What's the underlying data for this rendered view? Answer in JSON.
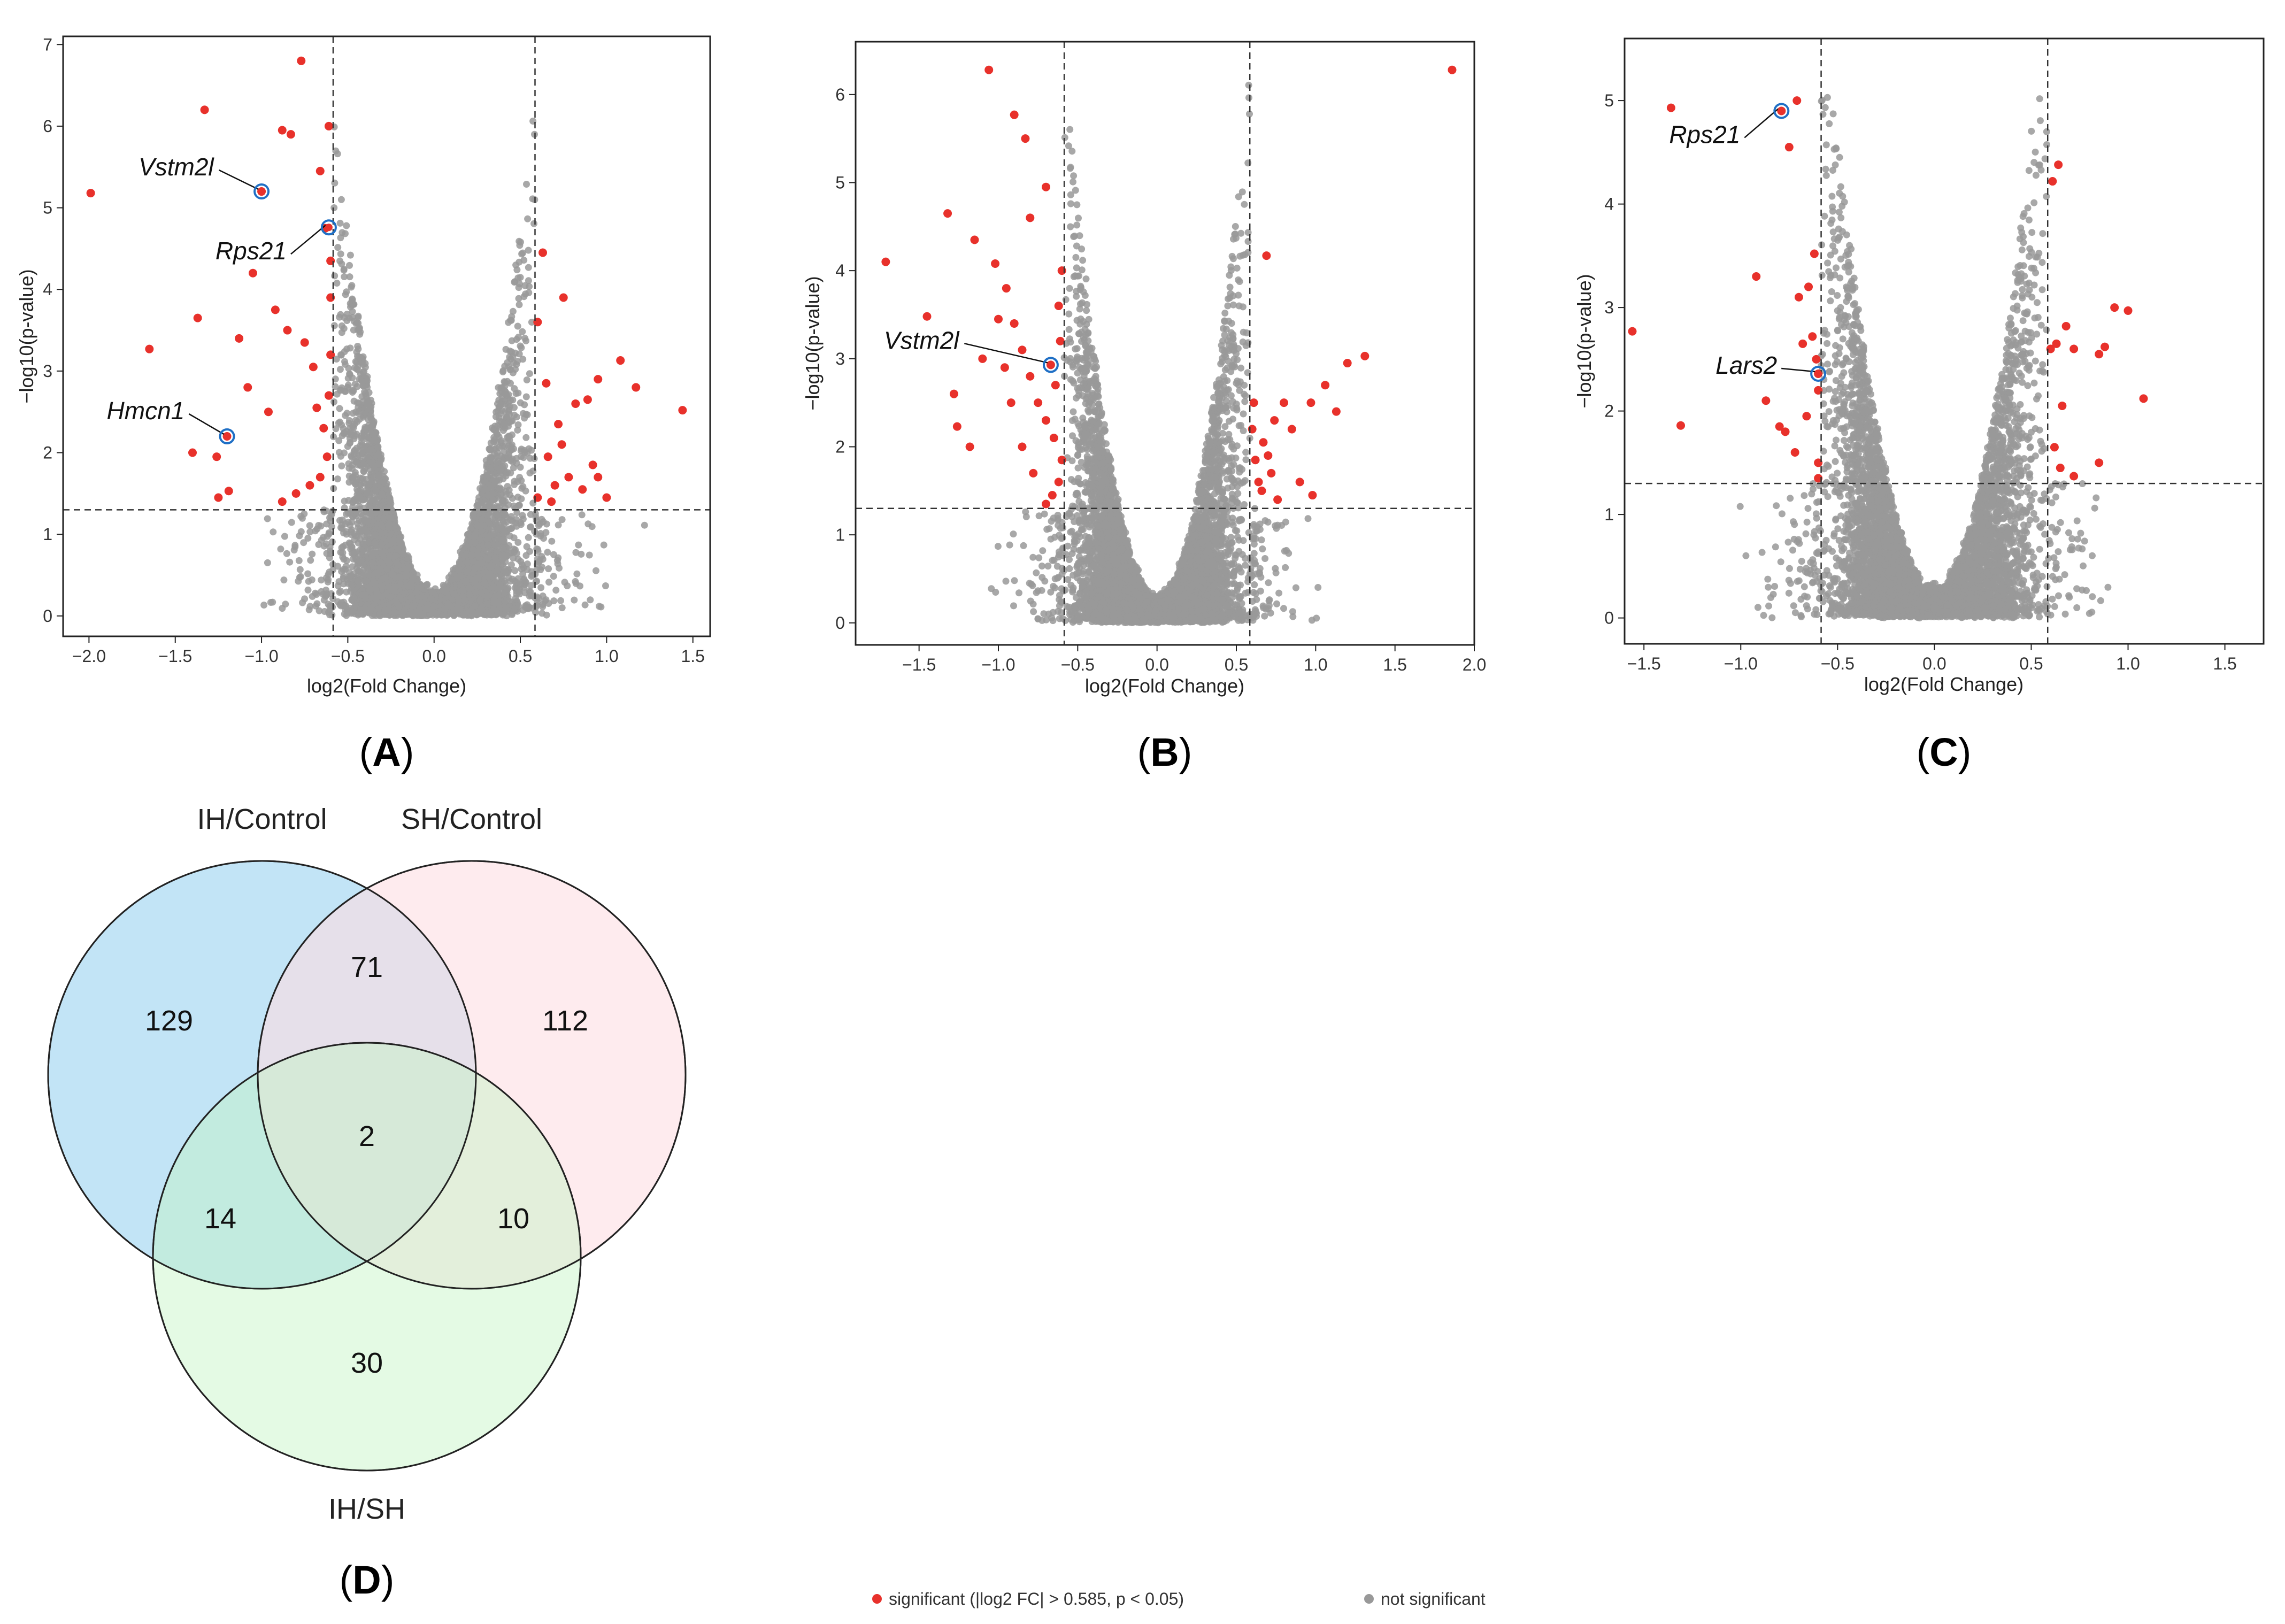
{
  "colors": {
    "significant": "#e8312b",
    "not_significant": "#999999",
    "highlight_ring": "#1f6fc5",
    "set_ih_control": "#bfe3f5",
    "set_sh_control": "#fddde3",
    "set_ih_sh": "#c3f5c3"
  },
  "point_legend": {
    "significant": "significant (|log2 FC| > 0.585, p < 0.05)",
    "not_significant": "not significant"
  },
  "chart_data": [
    {
      "type": "scatter",
      "id": "A",
      "panel": "A",
      "title": "",
      "xlabel": "log2(Fold Change)",
      "ylabel": "−log10(p-value)",
      "xlim": [
        -2.15,
        1.6
      ],
      "ylim": [
        -0.25,
        7.1
      ],
      "xticks": [
        -2.0,
        -1.5,
        -1.0,
        -0.5,
        0.0,
        0.5,
        1.0,
        1.5
      ],
      "xtick_labels": [
        "−2.0",
        "−1.5",
        "−1.0",
        "−0.5",
        "0.0",
        "0.5",
        "1.0",
        "1.5"
      ],
      "yticks": [
        0,
        1,
        2,
        3,
        4,
        5,
        6,
        7
      ],
      "ytick_labels": [
        "0",
        "1",
        "2",
        "3",
        "4",
        "5",
        "6",
        "7"
      ],
      "thresholds": {
        "fold_change_low": -0.585,
        "fold_change_high": 0.585,
        "p_value_line": 1.3
      },
      "significant_points": [
        [
          -1.99,
          5.18
        ],
        [
          -1.65,
          3.27
        ],
        [
          -1.33,
          6.2
        ],
        [
          -1.2,
          2.2
        ],
        [
          -1.0,
          5.2
        ],
        [
          -0.77,
          6.8
        ],
        [
          -0.88,
          5.95
        ],
        [
          -0.83,
          5.9
        ],
        [
          -0.66,
          5.45
        ],
        [
          -0.61,
          6.0
        ],
        [
          -0.63,
          4.75
        ],
        [
          -1.05,
          4.2
        ],
        [
          -1.37,
          3.65
        ],
        [
          -1.4,
          2.0
        ],
        [
          -1.26,
          1.95
        ],
        [
          -1.25,
          1.45
        ],
        [
          -1.19,
          1.53
        ],
        [
          -0.92,
          3.75
        ],
        [
          -0.85,
          3.5
        ],
        [
          -0.75,
          3.35
        ],
        [
          -0.7,
          3.05
        ],
        [
          -0.68,
          2.55
        ],
        [
          -0.64,
          2.3
        ],
        [
          -0.62,
          1.95
        ],
        [
          -0.66,
          1.7
        ],
        [
          -0.72,
          1.6
        ],
        [
          -0.8,
          1.5
        ],
        [
          -0.88,
          1.4
        ],
        [
          -0.96,
          2.5
        ],
        [
          -1.08,
          2.8
        ],
        [
          -1.13,
          3.4
        ],
        [
          -0.6,
          4.35
        ],
        [
          -0.6,
          3.9
        ],
        [
          -0.6,
          3.2
        ],
        [
          -0.61,
          2.7
        ],
        [
          0.63,
          4.45
        ],
        [
          0.6,
          3.6
        ],
        [
          0.65,
          2.85
        ],
        [
          0.75,
          3.9
        ],
        [
          0.82,
          2.6
        ],
        [
          0.89,
          2.65
        ],
        [
          0.95,
          2.9
        ],
        [
          1.08,
          3.13
        ],
        [
          1.17,
          2.8
        ],
        [
          1.44,
          2.52
        ],
        [
          0.95,
          1.7
        ],
        [
          1.0,
          1.45
        ],
        [
          0.66,
          1.95
        ],
        [
          0.7,
          1.6
        ],
        [
          0.74,
          2.1
        ],
        [
          0.78,
          1.7
        ],
        [
          0.86,
          1.55
        ],
        [
          0.92,
          1.85
        ],
        [
          0.6,
          1.45
        ],
        [
          0.68,
          1.4
        ],
        [
          0.72,
          2.35
        ]
      ],
      "highlighted_genes": [
        {
          "name": "Vstm2l",
          "x": -1.0,
          "y": 5.2
        },
        {
          "name": "Rps21",
          "x": -0.61,
          "y": 4.76
        },
        {
          "name": "Hmcn1",
          "x": -1.2,
          "y": 2.2
        }
      ]
    },
    {
      "type": "scatter",
      "id": "B",
      "panel": "B",
      "title": "",
      "xlabel": "log2(Fold Change)",
      "ylabel": "−log10(p-value)",
      "xlim": [
        -1.9,
        2.0
      ],
      "ylim": [
        -0.25,
        6.6
      ],
      "xticks": [
        -1.5,
        -1.0,
        -0.5,
        0.0,
        0.5,
        1.0,
        1.5,
        2.0
      ],
      "xtick_labels": [
        "−1.5",
        "−1.0",
        "−0.5",
        "0.0",
        "0.5",
        "1.0",
        "1.5",
        "2.0"
      ],
      "yticks": [
        0,
        1,
        2,
        3,
        4,
        5,
        6
      ],
      "ytick_labels": [
        "0",
        "1",
        "2",
        "3",
        "4",
        "5",
        "6"
      ],
      "thresholds": {
        "fold_change_low": -0.585,
        "fold_change_high": 0.585,
        "p_value_line": 1.3
      },
      "significant_points": [
        [
          -1.71,
          4.1
        ],
        [
          -1.45,
          3.48
        ],
        [
          -1.32,
          4.65
        ],
        [
          -1.28,
          2.6
        ],
        [
          -1.26,
          2.23
        ],
        [
          -1.15,
          4.35
        ],
        [
          -1.06,
          6.28
        ],
        [
          -1.0,
          3.45
        ],
        [
          -0.9,
          5.77
        ],
        [
          -0.83,
          5.5
        ],
        [
          -0.8,
          4.6
        ],
        [
          -0.7,
          4.95
        ],
        [
          -1.02,
          4.08
        ],
        [
          -0.95,
          3.8
        ],
        [
          -0.9,
          3.4
        ],
        [
          -0.85,
          3.1
        ],
        [
          -0.8,
          2.8
        ],
        [
          -0.75,
          2.5
        ],
        [
          -0.7,
          2.3
        ],
        [
          -0.65,
          2.1
        ],
        [
          -0.6,
          1.85
        ],
        [
          -0.62,
          1.6
        ],
        [
          -0.66,
          1.45
        ],
        [
          -0.7,
          1.35
        ],
        [
          -0.78,
          1.7
        ],
        [
          -0.85,
          2.0
        ],
        [
          -0.92,
          2.5
        ],
        [
          -0.96,
          2.9
        ],
        [
          -1.1,
          3.0
        ],
        [
          -1.18,
          2.0
        ],
        [
          -0.62,
          3.6
        ],
        [
          -0.6,
          4.0
        ],
        [
          -0.61,
          3.2
        ],
        [
          -0.64,
          2.7
        ],
        [
          -0.67,
          2.93
        ],
        [
          0.6,
          2.2
        ],
        [
          0.62,
          1.85
        ],
        [
          0.64,
          1.6
        ],
        [
          0.67,
          2.05
        ],
        [
          0.7,
          1.9
        ],
        [
          0.72,
          1.7
        ],
        [
          0.74,
          2.3
        ],
        [
          0.69,
          4.17
        ],
        [
          0.8,
          2.5
        ],
        [
          0.85,
          2.2
        ],
        [
          0.9,
          1.6
        ],
        [
          0.97,
          2.5
        ],
        [
          1.06,
          2.7
        ],
        [
          1.13,
          2.4
        ],
        [
          1.2,
          2.95
        ],
        [
          1.31,
          3.03
        ],
        [
          1.86,
          6.28
        ],
        [
          0.98,
          1.45
        ],
        [
          0.61,
          2.5
        ],
        [
          0.66,
          1.5
        ],
        [
          0.76,
          1.4
        ]
      ],
      "highlighted_genes": [
        {
          "name": "Vstm2l",
          "x": -0.67,
          "y": 2.93
        }
      ]
    },
    {
      "type": "scatter",
      "id": "C",
      "panel": "C",
      "title": "",
      "xlabel": "log2(Fold Change)",
      "ylabel": "−log10(p-value)",
      "xlim": [
        -1.6,
        1.7
      ],
      "ylim": [
        -0.25,
        5.6
      ],
      "xticks": [
        -1.5,
        -1.0,
        -0.5,
        0.0,
        0.5,
        1.0,
        1.5
      ],
      "xtick_labels": [
        "−1.5",
        "−1.0",
        "−0.5",
        "0.0",
        "0.5",
        "1.0",
        "1.5"
      ],
      "yticks": [
        0,
        1,
        2,
        3,
        4,
        5
      ],
      "ytick_labels": [
        "0",
        "1",
        "2",
        "3",
        "4",
        "5"
      ],
      "thresholds": {
        "fold_change_low": -0.585,
        "fold_change_high": 0.585,
        "p_value_line": 1.3
      },
      "significant_points": [
        [
          -1.36,
          4.93
        ],
        [
          -0.79,
          4.9
        ],
        [
          -0.71,
          5.0
        ],
        [
          -0.75,
          4.55
        ],
        [
          -1.56,
          2.77
        ],
        [
          -1.31,
          1.86
        ],
        [
          -0.92,
          3.3
        ],
        [
          -0.87,
          2.1
        ],
        [
          -0.8,
          1.85
        ],
        [
          -0.77,
          1.8
        ],
        [
          -0.7,
          3.1
        ],
        [
          -0.68,
          2.65
        ],
        [
          -0.65,
          3.2
        ],
        [
          -0.63,
          2.72
        ],
        [
          -0.61,
          2.5
        ],
        [
          -0.6,
          2.2
        ],
        [
          -0.62,
          3.52
        ],
        [
          -0.66,
          1.95
        ],
        [
          -0.72,
          1.6
        ],
        [
          -0.6,
          1.5
        ],
        [
          -0.6,
          1.35
        ],
        [
          -0.6,
          2.36
        ],
        [
          0.61,
          4.22
        ],
        [
          0.64,
          4.38
        ],
        [
          0.6,
          2.6
        ],
        [
          0.63,
          2.65
        ],
        [
          0.66,
          2.05
        ],
        [
          0.68,
          2.82
        ],
        [
          0.72,
          2.6
        ],
        [
          0.85,
          2.55
        ],
        [
          0.88,
          2.62
        ],
        [
          0.93,
          3.0
        ],
        [
          1.0,
          2.97
        ],
        [
          1.08,
          2.12
        ],
        [
          0.62,
          1.65
        ],
        [
          0.65,
          1.45
        ],
        [
          0.72,
          1.37
        ],
        [
          0.85,
          1.5
        ]
      ],
      "highlighted_genes": [
        {
          "name": "Rps21",
          "x": -0.79,
          "y": 4.9
        },
        {
          "name": "Lars2",
          "x": -0.6,
          "y": 2.36
        }
      ]
    },
    {
      "type": "venn",
      "id": "D",
      "panel": "D",
      "title": "",
      "sets": [
        "IH/Control",
        "SH/Control",
        "IH/SH"
      ],
      "regions": [
        {
          "key": "ih_control_only",
          "sets": [
            "IH/Control"
          ],
          "value": 129
        },
        {
          "key": "sh_control_only",
          "sets": [
            "SH/Control"
          ],
          "value": 112
        },
        {
          "key": "ih_sh_only",
          "sets": [
            "IH/SH"
          ],
          "value": 30
        },
        {
          "key": "ih_control_and_sh_control",
          "sets": [
            "IH/Control",
            "SH/Control"
          ],
          "value": 71
        },
        {
          "key": "ih_control_and_ih_sh",
          "sets": [
            "IH/Control",
            "IH/SH"
          ],
          "value": 14
        },
        {
          "key": "sh_control_and_ih_sh",
          "sets": [
            "SH/Control",
            "IH/SH"
          ],
          "value": 10
        },
        {
          "key": "all_three",
          "sets": [
            "IH/Control",
            "SH/Control",
            "IH/SH"
          ],
          "value": 2
        }
      ]
    }
  ]
}
